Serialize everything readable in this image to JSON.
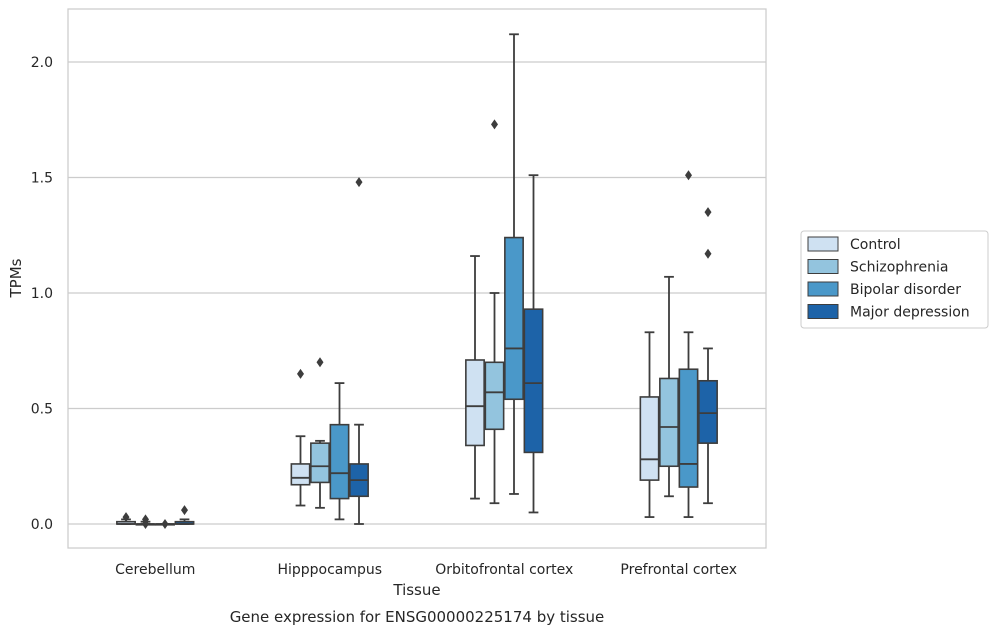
{
  "caption": "Gene expression for ENSG00000225174 by tissue",
  "chart_data": {
    "type": "boxplot",
    "xlabel": "Tissue",
    "ylabel": "TPMs",
    "ylim": [
      -0.1,
      2.23
    ],
    "yticks": [
      0.0,
      0.5,
      1.0,
      1.5,
      2.0
    ],
    "ytick_labels": [
      "0.0",
      "0.5",
      "1.0",
      "1.5",
      "2.0"
    ],
    "grid": "horizontal",
    "legend_position": "right",
    "categories": [
      "Cerebellum",
      "Hipppocampus",
      "Orbitofrontal cortex",
      "Prefrontal cortex"
    ],
    "series": [
      {
        "name": "Control",
        "color": "#cfe1f2",
        "boxes": [
          {
            "min": 0.0,
            "q1": 0.0,
            "median": 0.0,
            "q3": 0.01,
            "max": 0.02,
            "outliers": [
              0.03
            ]
          },
          {
            "min": 0.08,
            "q1": 0.17,
            "median": 0.2,
            "q3": 0.26,
            "max": 0.38,
            "outliers": [
              0.65
            ]
          },
          {
            "min": 0.11,
            "q1": 0.34,
            "median": 0.51,
            "q3": 0.71,
            "max": 1.16,
            "outliers": []
          },
          {
            "min": 0.03,
            "q1": 0.19,
            "median": 0.28,
            "q3": 0.55,
            "max": 0.83,
            "outliers": []
          }
        ]
      },
      {
        "name": "Schizophrenia",
        "color": "#93c4de",
        "boxes": [
          {
            "min": 0.0,
            "q1": 0.0,
            "median": 0.0,
            "q3": 0.0,
            "max": 0.01,
            "outliers": [
              0.02,
              0.0
            ]
          },
          {
            "min": 0.07,
            "q1": 0.18,
            "median": 0.25,
            "q3": 0.35,
            "max": 0.36,
            "outliers": [
              0.7
            ]
          },
          {
            "min": 0.09,
            "q1": 0.41,
            "median": 0.57,
            "q3": 0.7,
            "max": 1.0,
            "outliers": [
              1.73
            ]
          },
          {
            "min": 0.12,
            "q1": 0.25,
            "median": 0.42,
            "q3": 0.63,
            "max": 1.07,
            "outliers": []
          }
        ]
      },
      {
        "name": "Bipolar disorder",
        "color": "#4a98c9",
        "boxes": [
          {
            "min": 0.0,
            "q1": 0.0,
            "median": 0.0,
            "q3": 0.0,
            "max": 0.0,
            "outliers": [
              0.0
            ]
          },
          {
            "min": 0.02,
            "q1": 0.11,
            "median": 0.22,
            "q3": 0.43,
            "max": 0.61,
            "outliers": []
          },
          {
            "min": 0.13,
            "q1": 0.54,
            "median": 0.76,
            "q3": 1.24,
            "max": 2.12,
            "outliers": []
          },
          {
            "min": 0.03,
            "q1": 0.16,
            "median": 0.26,
            "q3": 0.67,
            "max": 0.83,
            "outliers": [
              1.51
            ]
          }
        ]
      },
      {
        "name": "Major depression",
        "color": "#1d63a8",
        "boxes": [
          {
            "min": 0.0,
            "q1": 0.0,
            "median": 0.0,
            "q3": 0.01,
            "max": 0.02,
            "outliers": [
              0.06
            ]
          },
          {
            "min": 0.0,
            "q1": 0.12,
            "median": 0.19,
            "q3": 0.26,
            "max": 0.43,
            "outliers": [
              1.48
            ]
          },
          {
            "min": 0.05,
            "q1": 0.31,
            "median": 0.61,
            "q3": 0.93,
            "max": 1.51,
            "outliers": []
          },
          {
            "min": 0.09,
            "q1": 0.35,
            "median": 0.48,
            "q3": 0.62,
            "max": 0.76,
            "outliers": [
              1.17,
              1.35
            ]
          }
        ]
      }
    ]
  }
}
